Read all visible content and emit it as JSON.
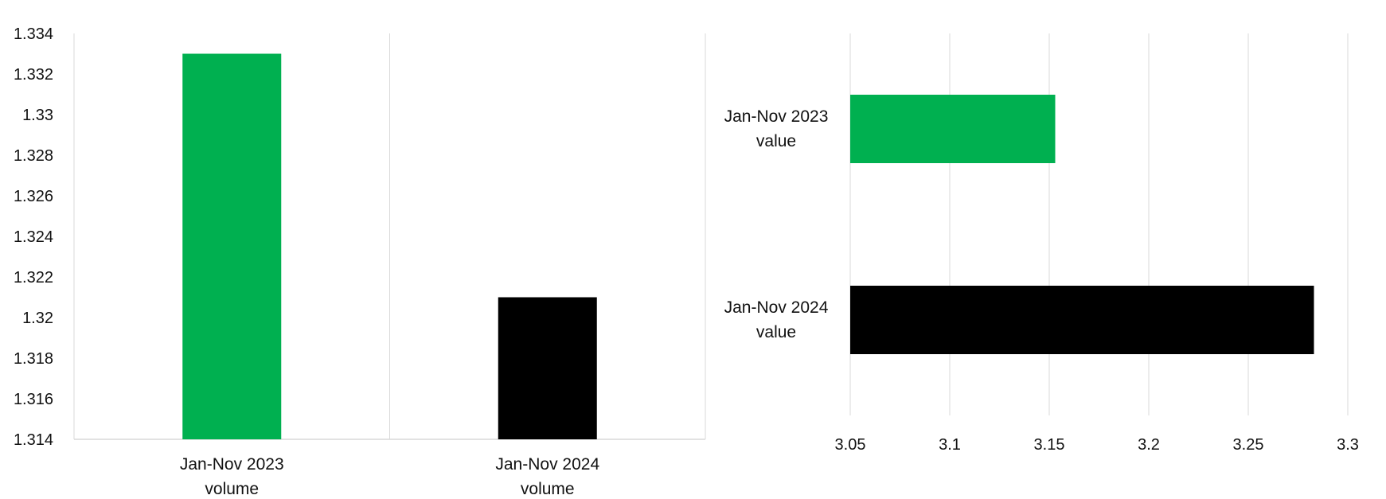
{
  "chart_data": [
    {
      "type": "bar",
      "orientation": "vertical",
      "categories": [
        [
          "Jan-Nov 2023",
          "volume"
        ],
        [
          "Jan-Nov 2024",
          "volume"
        ]
      ],
      "values": [
        1.333,
        1.321
      ],
      "bar_colors": [
        "#00b050",
        "#000000"
      ],
      "ylim": [
        1.314,
        1.334
      ],
      "yticks": [
        "1.314",
        "1.316",
        "1.318",
        "1.32",
        "1.322",
        "1.324",
        "1.326",
        "1.328",
        "1.33",
        "1.332",
        "1.334"
      ],
      "grid": "vertical category separators",
      "legend": "none"
    },
    {
      "type": "bar",
      "orientation": "horizontal",
      "categories": [
        [
          "Jan-Nov 2023",
          "value"
        ],
        [
          "Jan-Nov 2024",
          "value"
        ]
      ],
      "values": [
        3.153,
        3.283
      ],
      "bar_colors": [
        "#00b050",
        "#000000"
      ],
      "xlim": [
        3.05,
        3.3
      ],
      "xticks": [
        "3.05",
        "3.1",
        "3.15",
        "3.2",
        "3.25",
        "3.3"
      ],
      "grid": "vertical gridlines",
      "legend": "none"
    }
  ]
}
